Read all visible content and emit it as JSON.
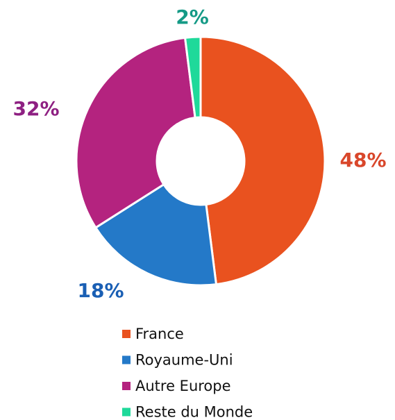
{
  "chart_data": {
    "type": "donut",
    "categories": [
      "France",
      "Royaume-Uni",
      "Autre Europe",
      "Reste du Monde"
    ],
    "values": [
      48,
      18,
      32,
      2
    ],
    "value_labels": [
      "48%",
      "18%",
      "32%",
      "2%"
    ],
    "colors": [
      "#e9521f",
      "#2479c8",
      "#b4237f",
      "#1fd99a"
    ],
    "label_colors": [
      "#d9472b",
      "#1a5fb4",
      "#8e2082",
      "#159a86"
    ]
  }
}
